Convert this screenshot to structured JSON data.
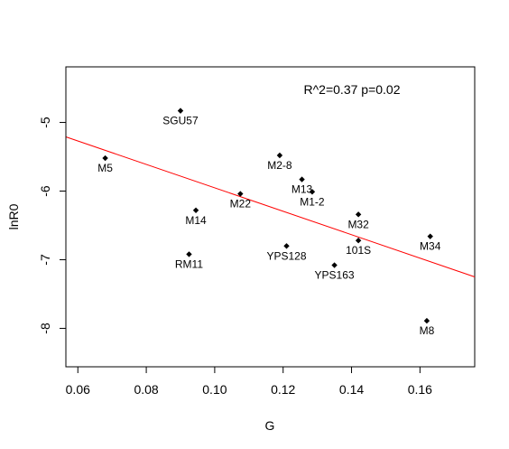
{
  "chart_data": {
    "type": "scatter",
    "title": "",
    "xlabel": "G",
    "ylabel": "lnR0",
    "xlim": [
      0.0565,
      0.176
    ],
    "ylim": [
      -8.56,
      -4.19
    ],
    "xticks": [
      0.06,
      0.08,
      0.1,
      0.12,
      0.14,
      0.16
    ],
    "xtick_labels": [
      "0.06",
      "0.08",
      "0.10",
      "0.12",
      "0.14",
      "0.16"
    ],
    "yticks": [
      -8,
      -7,
      -6,
      -5
    ],
    "ytick_labels": [
      "-8",
      "-7",
      "-6",
      "-5"
    ],
    "annotation": "R^2=0.37 p=0.02",
    "grid": false,
    "colors": {
      "points": "#000000",
      "fit_line": "#ff0000"
    },
    "points": [
      {
        "label": "SGU57",
        "x": 0.09,
        "y": -4.83
      },
      {
        "label": "M5",
        "x": 0.068,
        "y": -5.52
      },
      {
        "label": "M2-8",
        "x": 0.119,
        "y": -5.48
      },
      {
        "label": "M13",
        "x": 0.1255,
        "y": -5.83
      },
      {
        "label": "M1-2",
        "x": 0.1285,
        "y": -6.01
      },
      {
        "label": "M22",
        "x": 0.1075,
        "y": -6.04
      },
      {
        "label": "M14",
        "x": 0.0945,
        "y": -6.28
      },
      {
        "label": "M32",
        "x": 0.142,
        "y": -6.34
      },
      {
        "label": "M34",
        "x": 0.163,
        "y": -6.66
      },
      {
        "label": "101S",
        "x": 0.142,
        "y": -6.72
      },
      {
        "label": "YPS128",
        "x": 0.121,
        "y": -6.8
      },
      {
        "label": "RM11",
        "x": 0.0925,
        "y": -6.92
      },
      {
        "label": "YPS163",
        "x": 0.135,
        "y": -7.08
      },
      {
        "label": "M8",
        "x": 0.162,
        "y": -7.89
      }
    ],
    "fit_line": {
      "x": [
        0.0565,
        0.176
      ],
      "y": [
        -5.21,
        -7.25
      ]
    }
  }
}
